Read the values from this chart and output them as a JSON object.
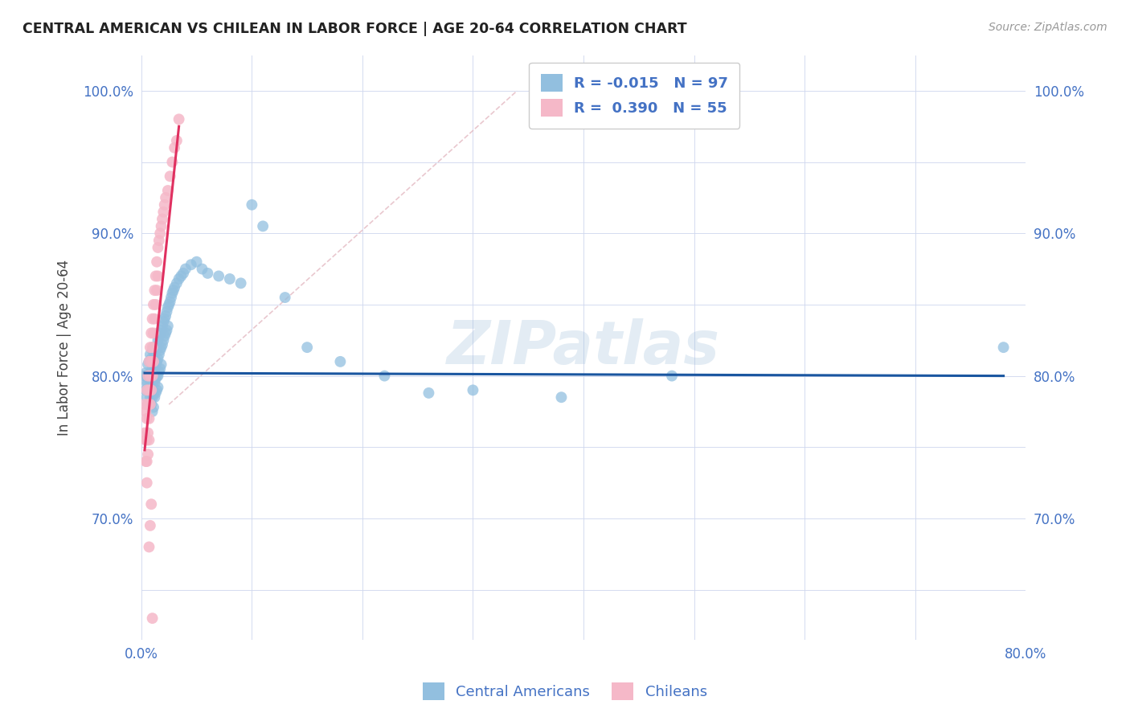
{
  "title": "CENTRAL AMERICAN VS CHILEAN IN LABOR FORCE | AGE 20-64 CORRELATION CHART",
  "source": "Source: ZipAtlas.com",
  "ylabel": "In Labor Force | Age 20-64",
  "watermark": "ZIPatlas",
  "legend_blue_R": "-0.015",
  "legend_blue_N": "97",
  "legend_pink_R": "0.390",
  "legend_pink_N": "55",
  "xlim": [
    0.0,
    0.8
  ],
  "ylim": [
    0.615,
    1.025
  ],
  "x_ticks": [
    0.0,
    0.1,
    0.2,
    0.3,
    0.4,
    0.5,
    0.6,
    0.7,
    0.8
  ],
  "x_tick_labels": [
    "0.0%",
    "",
    "",
    "",
    "",
    "",
    "",
    "",
    "80.0%"
  ],
  "y_ticks": [
    0.65,
    0.7,
    0.75,
    0.8,
    0.85,
    0.9,
    0.95,
    1.0
  ],
  "y_tick_labels": [
    "",
    "70.0%",
    "",
    "80.0%",
    "",
    "90.0%",
    "",
    "100.0%"
  ],
  "blue_color": "#92bfdf",
  "pink_color": "#f5b8c8",
  "trend_blue_color": "#1a56a0",
  "trend_pink_color": "#e03060",
  "blue_scatter": [
    [
      0.003,
      0.8
    ],
    [
      0.004,
      0.802
    ],
    [
      0.004,
      0.79
    ],
    [
      0.005,
      0.795
    ],
    [
      0.005,
      0.785
    ],
    [
      0.005,
      0.8
    ],
    [
      0.006,
      0.808
    ],
    [
      0.006,
      0.795
    ],
    [
      0.006,
      0.78
    ],
    [
      0.006,
      0.8
    ],
    [
      0.007,
      0.81
    ],
    [
      0.007,
      0.798
    ],
    [
      0.007,
      0.79
    ],
    [
      0.007,
      0.8
    ],
    [
      0.008,
      0.815
    ],
    [
      0.008,
      0.802
    ],
    [
      0.008,
      0.793
    ],
    [
      0.008,
      0.785
    ],
    [
      0.008,
      0.8
    ],
    [
      0.009,
      0.812
    ],
    [
      0.009,
      0.8
    ],
    [
      0.009,
      0.79
    ],
    [
      0.009,
      0.78
    ],
    [
      0.01,
      0.818
    ],
    [
      0.01,
      0.805
    ],
    [
      0.01,
      0.795
    ],
    [
      0.01,
      0.785
    ],
    [
      0.01,
      0.775
    ],
    [
      0.011,
      0.82
    ],
    [
      0.011,
      0.808
    ],
    [
      0.011,
      0.798
    ],
    [
      0.011,
      0.788
    ],
    [
      0.011,
      0.778
    ],
    [
      0.012,
      0.815
    ],
    [
      0.012,
      0.805
    ],
    [
      0.012,
      0.795
    ],
    [
      0.012,
      0.785
    ],
    [
      0.013,
      0.818
    ],
    [
      0.013,
      0.808
    ],
    [
      0.013,
      0.798
    ],
    [
      0.013,
      0.788
    ],
    [
      0.014,
      0.82
    ],
    [
      0.014,
      0.81
    ],
    [
      0.014,
      0.8
    ],
    [
      0.014,
      0.79
    ],
    [
      0.015,
      0.825
    ],
    [
      0.015,
      0.812
    ],
    [
      0.015,
      0.8
    ],
    [
      0.015,
      0.792
    ],
    [
      0.016,
      0.828
    ],
    [
      0.016,
      0.815
    ],
    [
      0.016,
      0.803
    ],
    [
      0.017,
      0.83
    ],
    [
      0.017,
      0.818
    ],
    [
      0.017,
      0.805
    ],
    [
      0.018,
      0.832
    ],
    [
      0.018,
      0.82
    ],
    [
      0.018,
      0.808
    ],
    [
      0.019,
      0.835
    ],
    [
      0.019,
      0.822
    ],
    [
      0.02,
      0.838
    ],
    [
      0.02,
      0.825
    ],
    [
      0.021,
      0.84
    ],
    [
      0.021,
      0.828
    ],
    [
      0.022,
      0.842
    ],
    [
      0.022,
      0.83
    ],
    [
      0.023,
      0.845
    ],
    [
      0.023,
      0.832
    ],
    [
      0.024,
      0.848
    ],
    [
      0.024,
      0.835
    ],
    [
      0.025,
      0.85
    ],
    [
      0.026,
      0.852
    ],
    [
      0.027,
      0.855
    ],
    [
      0.028,
      0.858
    ],
    [
      0.029,
      0.86
    ],
    [
      0.03,
      0.862
    ],
    [
      0.032,
      0.865
    ],
    [
      0.034,
      0.868
    ],
    [
      0.036,
      0.87
    ],
    [
      0.038,
      0.872
    ],
    [
      0.04,
      0.875
    ],
    [
      0.045,
      0.878
    ],
    [
      0.05,
      0.88
    ],
    [
      0.055,
      0.875
    ],
    [
      0.06,
      0.872
    ],
    [
      0.07,
      0.87
    ],
    [
      0.08,
      0.868
    ],
    [
      0.09,
      0.865
    ],
    [
      0.1,
      0.92
    ],
    [
      0.11,
      0.905
    ],
    [
      0.13,
      0.855
    ],
    [
      0.15,
      0.82
    ],
    [
      0.18,
      0.81
    ],
    [
      0.22,
      0.8
    ],
    [
      0.26,
      0.788
    ],
    [
      0.3,
      0.79
    ],
    [
      0.38,
      0.785
    ],
    [
      0.48,
      0.8
    ],
    [
      0.78,
      0.82
    ]
  ],
  "pink_scatter": [
    [
      0.003,
      0.78
    ],
    [
      0.003,
      0.76
    ],
    [
      0.004,
      0.775
    ],
    [
      0.004,
      0.755
    ],
    [
      0.004,
      0.74
    ],
    [
      0.005,
      0.79
    ],
    [
      0.005,
      0.77
    ],
    [
      0.005,
      0.755
    ],
    [
      0.005,
      0.74
    ],
    [
      0.005,
      0.725
    ],
    [
      0.006,
      0.8
    ],
    [
      0.006,
      0.78
    ],
    [
      0.006,
      0.76
    ],
    [
      0.006,
      0.745
    ],
    [
      0.007,
      0.81
    ],
    [
      0.007,
      0.79
    ],
    [
      0.007,
      0.77
    ],
    [
      0.007,
      0.755
    ],
    [
      0.008,
      0.82
    ],
    [
      0.008,
      0.8
    ],
    [
      0.008,
      0.78
    ],
    [
      0.009,
      0.83
    ],
    [
      0.009,
      0.81
    ],
    [
      0.009,
      0.79
    ],
    [
      0.01,
      0.84
    ],
    [
      0.01,
      0.82
    ],
    [
      0.01,
      0.8
    ],
    [
      0.011,
      0.85
    ],
    [
      0.011,
      0.83
    ],
    [
      0.011,
      0.81
    ],
    [
      0.012,
      0.86
    ],
    [
      0.012,
      0.84
    ],
    [
      0.013,
      0.87
    ],
    [
      0.013,
      0.85
    ],
    [
      0.014,
      0.88
    ],
    [
      0.014,
      0.86
    ],
    [
      0.015,
      0.89
    ],
    [
      0.015,
      0.87
    ],
    [
      0.016,
      0.895
    ],
    [
      0.017,
      0.9
    ],
    [
      0.018,
      0.905
    ],
    [
      0.019,
      0.91
    ],
    [
      0.02,
      0.915
    ],
    [
      0.021,
      0.92
    ],
    [
      0.022,
      0.925
    ],
    [
      0.024,
      0.93
    ],
    [
      0.026,
      0.94
    ],
    [
      0.028,
      0.95
    ],
    [
      0.03,
      0.96
    ],
    [
      0.032,
      0.965
    ],
    [
      0.034,
      0.98
    ],
    [
      0.007,
      0.68
    ],
    [
      0.008,
      0.695
    ],
    [
      0.009,
      0.71
    ],
    [
      0.01,
      0.63
    ]
  ],
  "diag_line": [
    [
      0.025,
      0.78
    ],
    [
      0.34,
      1.0
    ]
  ],
  "blue_trend_x": [
    0.003,
    0.78
  ],
  "blue_trend_y": [
    0.802,
    0.8
  ],
  "pink_trend_x": [
    0.003,
    0.034
  ],
  "pink_trend_y": [
    0.748,
    0.975
  ]
}
